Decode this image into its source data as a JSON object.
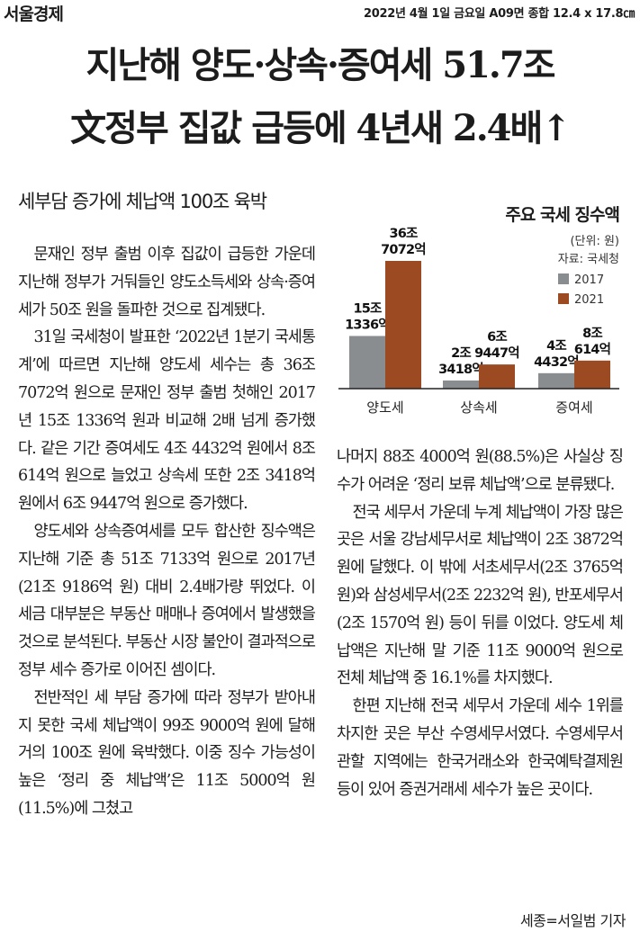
{
  "header": {
    "paper": "서울경제",
    "pub_info": "2022년 4월 1일 금요일 A09면 종합 12.4 x 17.8㎝"
  },
  "headline": {
    "line1": "지난해 양도·상속·증여세 51.7조",
    "line2": "文정부 집값 급등에 4년새 2.4배↑"
  },
  "subheadline": "세부담 증가에 체납액 100조 육박",
  "body_left": [
    "문재인 정부 출범 이후 집값이 급등한 가운데 지난해 정부가 거둬들인 양도소득세와 상속·증여세가 50조 원을 돌파한 것으로 집계됐다.",
    "31일 국세청이 발표한 ‘2022년 1분기 국세통계’에 따르면 지난해 양도세 세수는 총 36조 7072억 원으로 문재인 정부 출범 첫해인 2017년 15조 1336억 원과 비교해 2배 넘게 증가했다. 같은 기간 증여세도 4조 4432억 원에서 8조 614억 원으로 늘었고 상속세 또한 2조 3418억 원에서 6조 9447억 원으로 증가했다.",
    "양도세와 상속증여세를 모두 합산한 징수액은 지난해 기준 총 51조 7133억 원으로 2017년(21조 9186억 원) 대비 2.4배가량 뛰었다. 이 세금 대부분은 부동산 매매나 증여에서 발생했을 것으로 분석된다. 부동산 시장 불안이 결과적으로 정부 세수 증가로 이어진 셈이다.",
    "전반적인 세 부담 증가에 따라 정부가 받아내지 못한 국세 체납액이 99조 9000억 원에 달해 거의 100조 원에 육박했다. 이중 징수 가능성이 높은 ‘정리 중 체납액’은 11조 5000억 원(11.5%)에 그쳤고"
  ],
  "body_right": [
    "나머지 88조 4000억 원(88.5%)은 사실상 징수가 어려운 ‘정리 보류 체납액’으로 분류됐다.",
    "전국 세무서 가운데 누계 체납액이 가장 많은 곳은 서울 강남세무서로 체납액이 2조 3872억 원에 달했다. 이 밖에 서초세무서(2조 3765억 원)와 삼성세무서(2조 2232억 원), 반포세무서(2조 1570억 원) 등이 뒤를 이었다. 양도세 체납액은 지난해 말 기준 11조 9000억 원으로 전체 체납액 중 16.1%를 차지했다.",
    "한편 지난해 전국 세무서 가운데 세수 1위를 차지한 곳은 부산 수영세무서였다. 수영세무서 관할 지역에는 한국거래소와 한국예탁결제원 등이 있어 증권거래세 세수가 높은 곳이다."
  ],
  "byline": "세종=서일범 기자",
  "chart_data": {
    "type": "bar",
    "title": "주요 국세 징수액",
    "unit": "(단위: 원)",
    "source": "자료: 국세청",
    "categories": [
      "양도세",
      "상속세",
      "증여세"
    ],
    "series": [
      {
        "name": "2017",
        "color": "#8a8d90",
        "values": [
          15.1336,
          2.3418,
          4.4432
        ],
        "labels": [
          "15조 1336억",
          "2조 3418억",
          "4조 4432억"
        ]
      },
      {
        "name": "2021",
        "color": "#9b4a22",
        "values": [
          36.7072,
          6.9447,
          8.0614
        ],
        "labels": [
          "36조 7072억",
          "6조 9447억",
          "8조 614억"
        ]
      }
    ],
    "legend": "right"
  }
}
